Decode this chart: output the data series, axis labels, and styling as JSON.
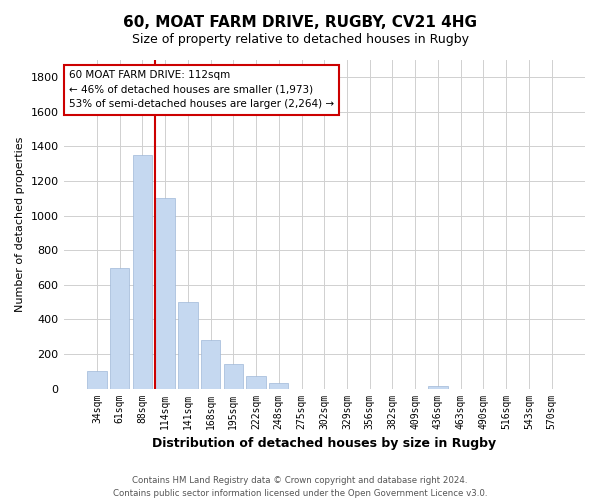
{
  "title": "60, MOAT FARM DRIVE, RUGBY, CV21 4HG",
  "subtitle": "Size of property relative to detached houses in Rugby",
  "xlabel": "Distribution of detached houses by size in Rugby",
  "ylabel": "Number of detached properties",
  "bar_labels": [
    "34sqm",
    "61sqm",
    "88sqm",
    "114sqm",
    "141sqm",
    "168sqm",
    "195sqm",
    "222sqm",
    "248sqm",
    "275sqm",
    "302sqm",
    "329sqm",
    "356sqm",
    "382sqm",
    "409sqm",
    "436sqm",
    "463sqm",
    "490sqm",
    "516sqm",
    "543sqm",
    "570sqm"
  ],
  "bar_heights": [
    100,
    700,
    1350,
    1100,
    500,
    280,
    140,
    75,
    30,
    0,
    0,
    0,
    0,
    0,
    0,
    15,
    0,
    0,
    0,
    0,
    0
  ],
  "bar_color": "#c5d8f0",
  "bar_edge_color": "#a0b8d8",
  "vline_bar_index": 3,
  "vline_color": "#cc0000",
  "ylim": [
    0,
    1900
  ],
  "yticks": [
    0,
    200,
    400,
    600,
    800,
    1000,
    1200,
    1400,
    1600,
    1800
  ],
  "annotation_text": "60 MOAT FARM DRIVE: 112sqm\n← 46% of detached houses are smaller (1,973)\n53% of semi-detached houses are larger (2,264) →",
  "annotation_box_color": "#ffffff",
  "annotation_box_edge": "#cc0000",
  "footer1": "Contains HM Land Registry data © Crown copyright and database right 2024.",
  "footer2": "Contains public sector information licensed under the Open Government Licence v3.0.",
  "grid_color": "#d0d0d0",
  "background_color": "#ffffff"
}
